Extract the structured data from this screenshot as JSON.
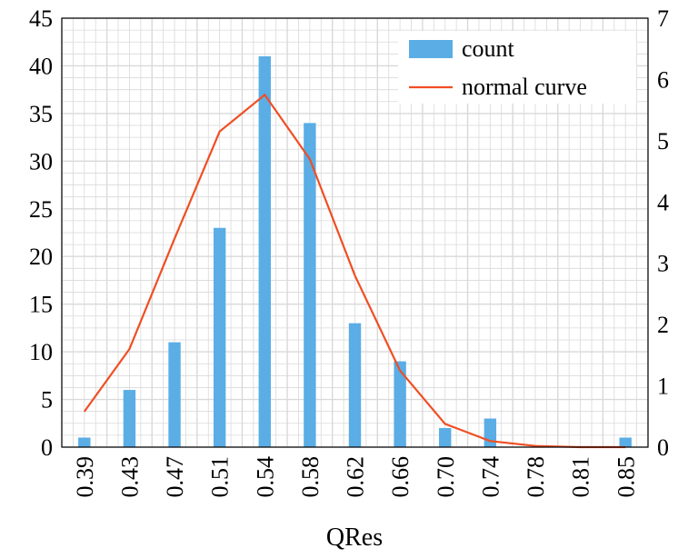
{
  "chart_data": {
    "type": "bar",
    "xlabel": "QRes",
    "categories": [
      "0.39",
      "0.43",
      "0.47",
      "0.51",
      "0.54",
      "0.58",
      "0.62",
      "0.66",
      "0.70",
      "0.74",
      "0.78",
      "0.81",
      "0.85"
    ],
    "series": [
      {
        "name": "count",
        "type": "bar",
        "axis": "left",
        "values": [
          1,
          6,
          11,
          23,
          41,
          34,
          13,
          9,
          2,
          3,
          0,
          0,
          1
        ]
      },
      {
        "name": "normal curve",
        "type": "line",
        "axis": "right",
        "values": [
          0.58,
          1.6,
          3.4,
          5.15,
          5.75,
          4.7,
          2.8,
          1.25,
          0.38,
          0.1,
          0.02,
          0.0,
          0.0
        ]
      }
    ],
    "ylim": [
      0,
      45
    ],
    "yticks": [
      "0",
      "5",
      "10",
      "15",
      "20",
      "25",
      "30",
      "35",
      "40",
      "45"
    ],
    "y2lim": [
      0,
      7
    ],
    "y2ticks": [
      "0",
      "1",
      "2",
      "3",
      "4",
      "5",
      "6",
      "7"
    ],
    "grid": true,
    "legend_position": "top-right",
    "colors": {
      "bar": "#5AADE5",
      "line": "#F04E23",
      "grid": "#D9D9D9"
    }
  }
}
